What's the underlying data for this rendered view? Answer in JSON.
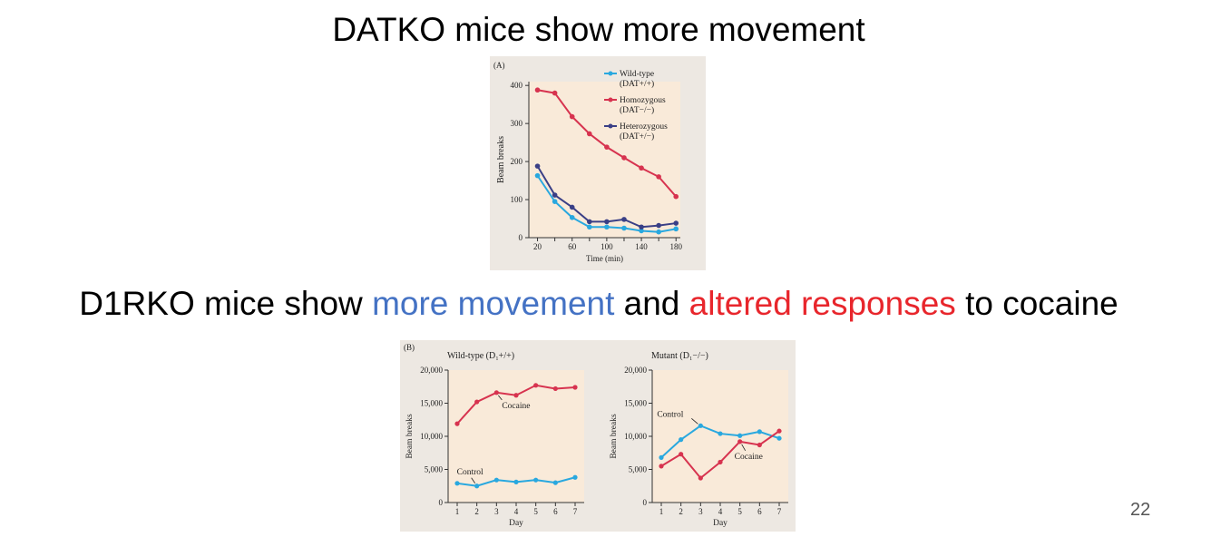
{
  "slide": {
    "title_top": "DATKO mice show more movement",
    "title_bottom_parts": [
      "D1RKO mice show ",
      "more movement",
      " and ",
      "altered responses",
      " to cocaine"
    ],
    "page_number": "22",
    "colors": {
      "highlight_blue": "#4472c4",
      "highlight_red": "#e8262c"
    }
  },
  "chart_data": [
    {
      "type": "line",
      "panel_label": "(A)",
      "xlabel": "Time (min)",
      "ylabel": "Beam breaks",
      "x": [
        20,
        40,
        60,
        80,
        100,
        120,
        140,
        160,
        180
      ],
      "xticks": [
        "20",
        "60",
        "100",
        "140",
        "180"
      ],
      "yticks": [
        "0",
        "100",
        "200",
        "300",
        "400"
      ],
      "xlim": [
        10,
        185
      ],
      "ylim": [
        0,
        410
      ],
      "grid": false,
      "legend_position": "top-right",
      "series": [
        {
          "name_line1": "Wild-type",
          "name_line2": "(DAT+/+)",
          "color": "#29a8df",
          "values": [
            163,
            95,
            53,
            28,
            28,
            25,
            18,
            15,
            23
          ]
        },
        {
          "name_line1": "Homozygous",
          "name_line2": "(DAT−/−)",
          "color": "#d7334f",
          "values": [
            388,
            380,
            318,
            273,
            238,
            210,
            183,
            160,
            108
          ]
        },
        {
          "name_line1": "Heterozygous",
          "name_line2": "(DAT+/−)",
          "color": "#3a3f86",
          "values": [
            188,
            112,
            80,
            42,
            42,
            48,
            28,
            32,
            38
          ]
        }
      ]
    },
    {
      "type": "line",
      "panel_label": "(B)",
      "title": "Wild-type (D₁+/+)",
      "xlabel": "Day",
      "ylabel": "Beam breaks",
      "x": [
        1,
        2,
        3,
        4,
        5,
        6,
        7
      ],
      "xticks": [
        "1",
        "2",
        "3",
        "4",
        "5",
        "6",
        "7"
      ],
      "yticks": [
        "0",
        "5,000",
        "10,000",
        "15,000",
        "20,000"
      ],
      "ylim": [
        0,
        20000
      ],
      "grid": false,
      "series": [
        {
          "name": "Cocaine",
          "color": "#d7334f",
          "values": [
            11900,
            15200,
            16600,
            16200,
            17700,
            17200,
            17400
          ]
        },
        {
          "name": "Control",
          "color": "#29a8df",
          "values": [
            2900,
            2500,
            3400,
            3100,
            3400,
            3000,
            3800
          ]
        }
      ]
    },
    {
      "type": "line",
      "title": "Mutant (D₁−/−)",
      "xlabel": "Day",
      "ylabel": "Beam breaks",
      "x": [
        1,
        2,
        3,
        4,
        5,
        6,
        7
      ],
      "xticks": [
        "1",
        "2",
        "3",
        "4",
        "5",
        "6",
        "7"
      ],
      "yticks": [
        "0",
        "5,000",
        "10,000",
        "15,000",
        "20,000"
      ],
      "ylim": [
        0,
        20000
      ],
      "grid": false,
      "series": [
        {
          "name": "Control",
          "color": "#29a8df",
          "values": [
            6800,
            9500,
            11600,
            10400,
            10100,
            10700,
            9700
          ]
        },
        {
          "name": "Cocaine",
          "color": "#d7334f",
          "values": [
            5500,
            7300,
            3700,
            6100,
            9200,
            8700,
            10800
          ]
        }
      ]
    }
  ]
}
